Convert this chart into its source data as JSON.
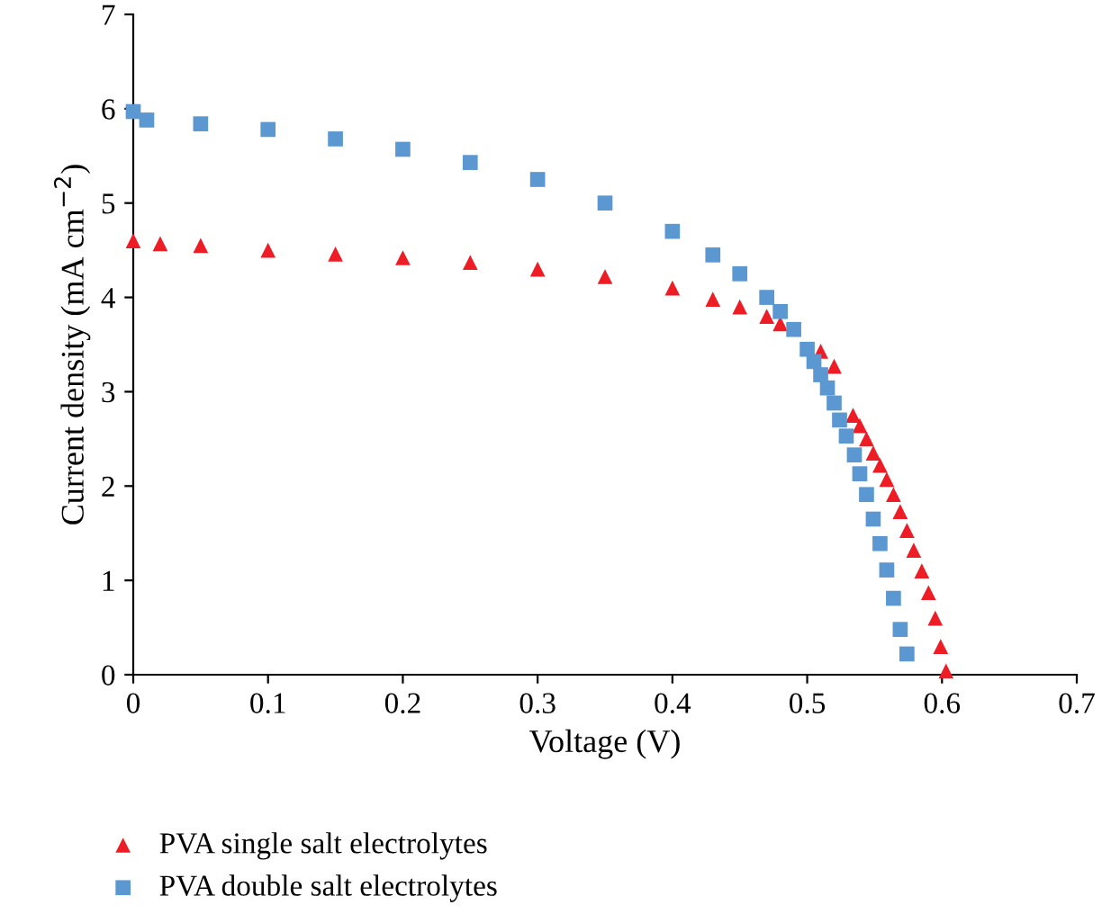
{
  "chart_data": {
    "type": "scatter",
    "xlabel": "Voltage (V)",
    "ylabel": "Current density (mA cm$^{−2}$)",
    "xlim": [
      0,
      0.7
    ],
    "ylim": [
      0,
      7
    ],
    "xticks": [
      0,
      0.1,
      0.2,
      0.3,
      0.4,
      0.5,
      0.6,
      0.7
    ],
    "yticks": [
      0,
      1,
      2,
      3,
      4,
      5,
      6,
      7
    ],
    "grid": false,
    "legend": "bottom",
    "series": [
      {
        "name": "PVA single salt electrolytes",
        "color": "#ee1c25",
        "marker": "triangle",
        "x": [
          0,
          0.02,
          0.05,
          0.1,
          0.15,
          0.2,
          0.25,
          0.3,
          0.35,
          0.4,
          0.43,
          0.45,
          0.47,
          0.48,
          0.51,
          0.52,
          0.534,
          0.539,
          0.544,
          0.549,
          0.554,
          0.559,
          0.564,
          0.569,
          0.574,
          0.579,
          0.585,
          0.59,
          0.595,
          0.599,
          0.603
        ],
        "values": [
          4.6,
          4.57,
          4.55,
          4.5,
          4.46,
          4.42,
          4.37,
          4.3,
          4.22,
          4.1,
          3.98,
          3.9,
          3.8,
          3.72,
          3.43,
          3.27,
          2.75,
          2.64,
          2.5,
          2.35,
          2.22,
          2.07,
          1.91,
          1.73,
          1.53,
          1.32,
          1.1,
          0.87,
          0.6,
          0.3,
          0.04
        ]
      },
      {
        "name": "PVA double salt electrolytes",
        "color": "#5b97d0",
        "marker": "square",
        "x": [
          0,
          0.01,
          0.05,
          0.1,
          0.15,
          0.2,
          0.25,
          0.3,
          0.35,
          0.4,
          0.43,
          0.45,
          0.47,
          0.48,
          0.49,
          0.5,
          0.505,
          0.51,
          0.515,
          0.52,
          0.524,
          0.529,
          0.535,
          0.539,
          0.544,
          0.549,
          0.554,
          0.559,
          0.564,
          0.569,
          0.574
        ],
        "values": [
          5.97,
          5.88,
          5.84,
          5.78,
          5.68,
          5.57,
          5.43,
          5.25,
          5.0,
          4.7,
          4.45,
          4.25,
          4.0,
          3.85,
          3.66,
          3.45,
          3.32,
          3.18,
          3.04,
          2.88,
          2.7,
          2.53,
          2.33,
          2.13,
          1.91,
          1.65,
          1.39,
          1.11,
          0.81,
          0.48,
          0.22
        ]
      }
    ]
  }
}
